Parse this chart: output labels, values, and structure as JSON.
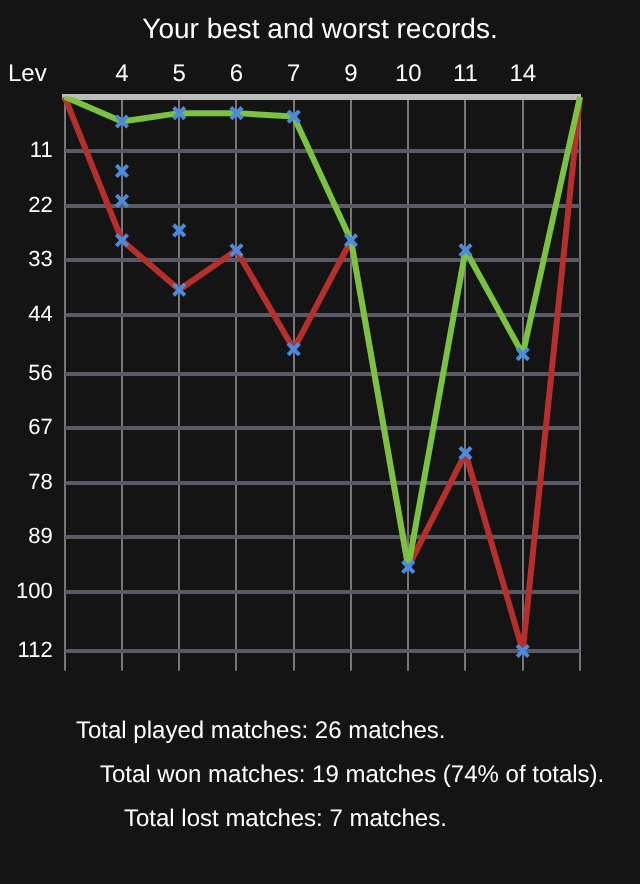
{
  "chart_data": {
    "type": "line",
    "title": "Your best and worst records.",
    "ylabel": "Lev",
    "categories": [
      null,
      "4",
      "5",
      "6",
      "7",
      "9",
      "10",
      "11",
      "14",
      null
    ],
    "series": [
      {
        "color": "#7cc242",
        "values": [
          0,
          5,
          3.3,
          3.3,
          4,
          29,
          95,
          31,
          52,
          0
        ]
      },
      {
        "color": "#b5302c",
        "values": [
          0,
          29,
          39,
          31,
          51,
          29,
          95,
          72,
          112,
          0
        ]
      },
      {
        "type": "scatter",
        "marker": "cross",
        "color": "#4a8be0",
        "x": [
          "4",
          "4",
          "4",
          "4",
          "5",
          "5",
          "5",
          "6",
          "6",
          "7",
          "7",
          "9",
          "10",
          "11",
          "11",
          "14",
          "14"
        ],
        "values": [
          5,
          15,
          21,
          29,
          3.3,
          27,
          39,
          3.3,
          31,
          4,
          51,
          29,
          95,
          31,
          72,
          52,
          112
        ]
      }
    ],
    "ylim": [
      116,
      0
    ],
    "yticks": [
      11,
      22,
      33,
      44,
      56,
      67,
      78,
      89,
      100,
      112
    ],
    "grid": true,
    "marker": "none",
    "legend": false,
    "annotations": [
      "Total played matches: 26 matches.",
      "Total won matches: 19 matches (74% of totals).",
      "Total lost matches: 7 matches."
    ]
  }
}
